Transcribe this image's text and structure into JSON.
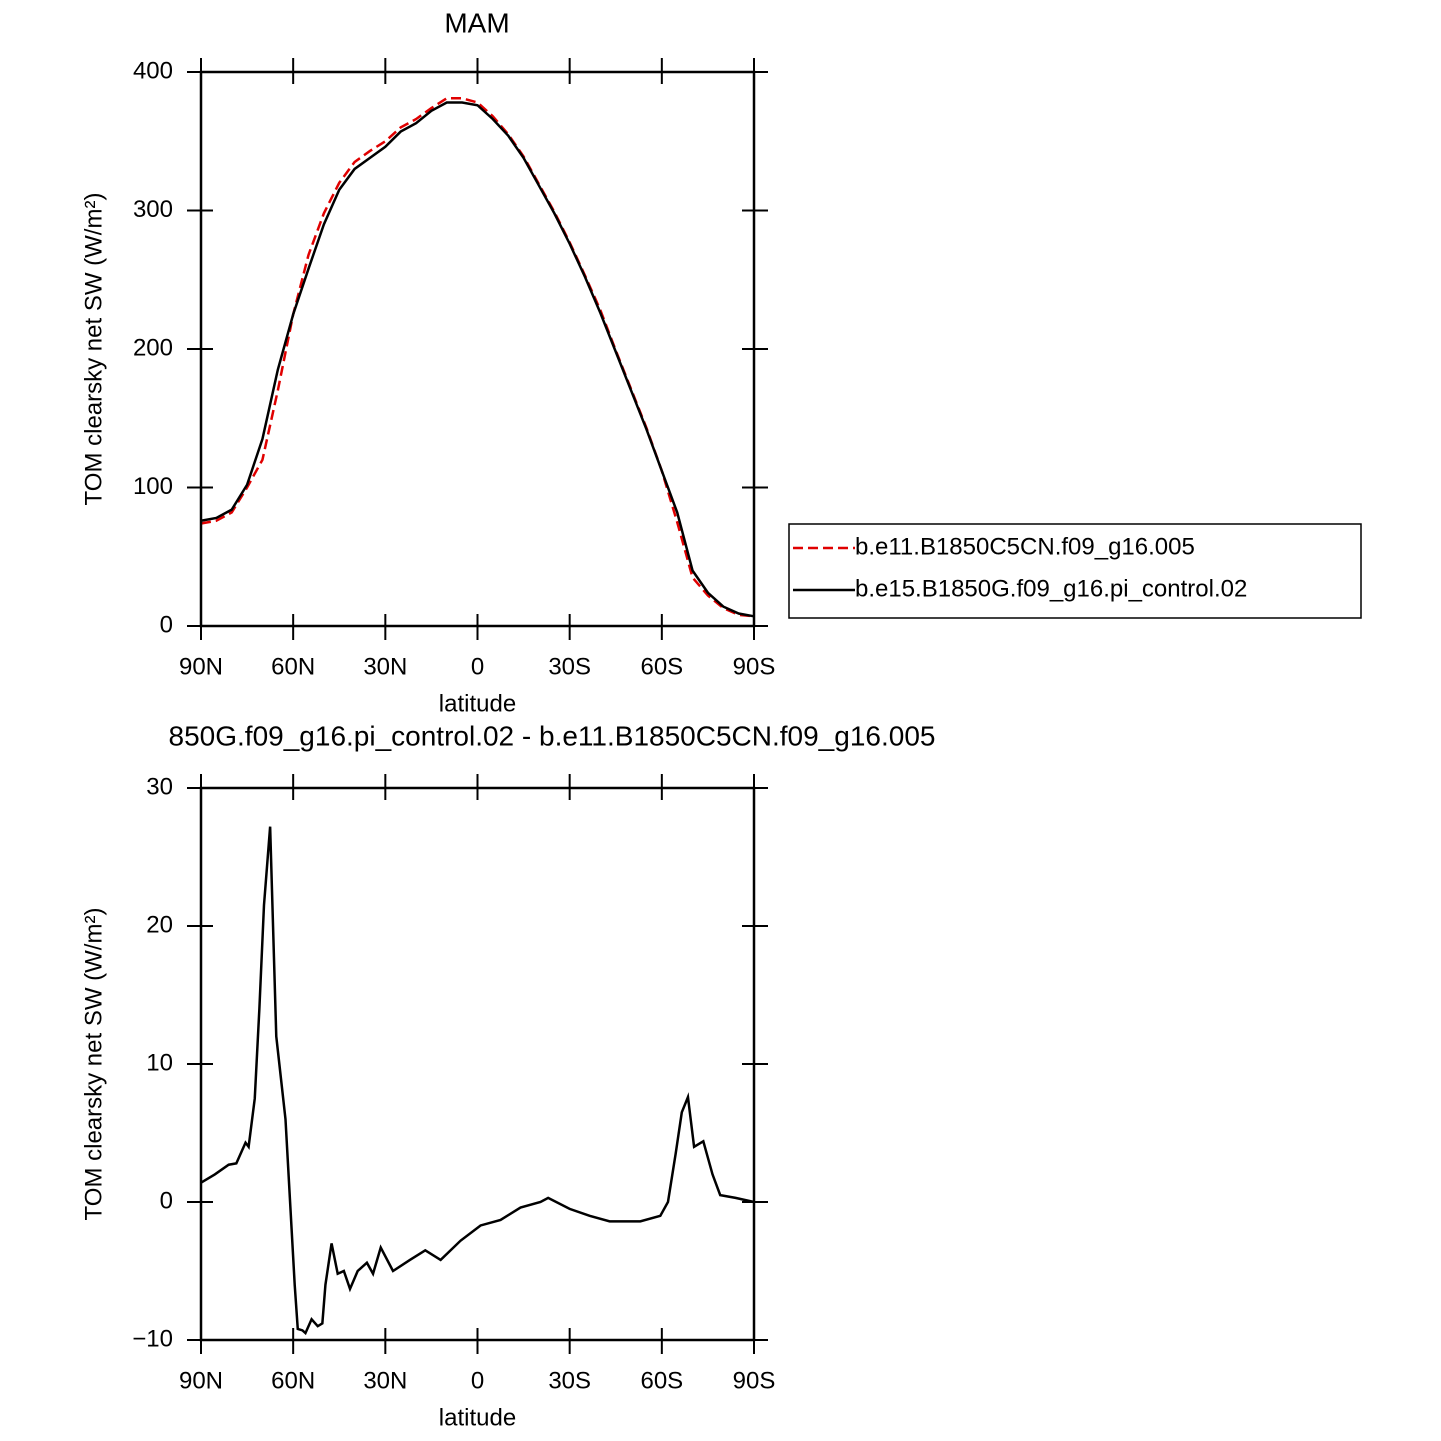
{
  "chart_data": [
    {
      "type": "line",
      "title": "MAM",
      "xlabel": "latitude",
      "ylabel": "TOM clearsky net SW (W/m²)",
      "x": [
        90,
        85,
        80,
        75,
        70,
        65,
        60,
        55,
        50,
        45,
        40,
        35,
        30,
        25,
        20,
        15,
        10,
        5,
        0,
        -5,
        -10,
        -15,
        -20,
        -25,
        -30,
        -35,
        -40,
        -45,
        -50,
        -55,
        -60,
        -65,
        -70,
        -75,
        -80,
        -85,
        -90
      ],
      "series": [
        {
          "name": "b.e11.B1850C5CN.f09_g16.005",
          "color": "#e00000",
          "line_style": "dashed",
          "values": [
            74,
            76,
            82,
            100,
            120,
            170,
            225,
            268,
            298,
            320,
            335,
            343,
            350,
            360,
            366,
            374,
            381,
            381,
            378,
            368,
            355,
            339,
            319,
            299,
            277,
            253,
            228,
            199,
            171,
            143,
            112,
            75,
            35,
            22,
            13,
            8,
            7
          ]
        },
        {
          "name": "b.e15.B1850G.f09_g16.pi_control.02",
          "color": "#000000",
          "line_style": "solid",
          "values": [
            76,
            78,
            84,
            102,
            135,
            185,
            225,
            258,
            290,
            315,
            330,
            338,
            346,
            357,
            363,
            372,
            378,
            378,
            376,
            366,
            354,
            338,
            318,
            298,
            276,
            252,
            226,
            198,
            170,
            142,
            112,
            82,
            40,
            24,
            14,
            9,
            7
          ]
        }
      ],
      "xlim": [
        90,
        -90
      ],
      "xticks": [
        {
          "value": 90,
          "label": "90N"
        },
        {
          "value": 60,
          "label": "60N"
        },
        {
          "value": 30,
          "label": "30N"
        },
        0,
        {
          "value": -30,
          "label": "30S"
        },
        {
          "value": -60,
          "label": "60S"
        },
        {
          "value": -90,
          "label": "90S"
        }
      ],
      "ylim": [
        0,
        400
      ],
      "yticks": [
        0,
        100,
        200,
        300,
        400
      ],
      "legend": "right"
    },
    {
      "type": "line",
      "title": "850G.f09_g16.pi_control.02 - b.e11.B1850C5CN.f09_g16.005",
      "xlabel": "latitude",
      "ylabel": "TOM clearsky net SW (W/m²)",
      "x": [
        90,
        85.5,
        81,
        78.5,
        75.5,
        74.5,
        72.5,
        71,
        69.5,
        67.5,
        65.5,
        64,
        62.5,
        61,
        59.5,
        58.5,
        57,
        56,
        54,
        52,
        50.5,
        49.5,
        47.5,
        45.5,
        43.5,
        41.5,
        39,
        36,
        34,
        31.5,
        27.5,
        22,
        17,
        12,
        5.5,
        -1,
        -7.5,
        -14,
        -20.5,
        -23,
        -30,
        -36.5,
        -43,
        -53,
        -59.5,
        -62,
        -64.5,
        -66.5,
        -68.5,
        -70.5,
        -73.5,
        -76.5,
        -79,
        -84,
        -90
      ],
      "series": [
        {
          "color": "#000000",
          "line_style": "solid",
          "values": [
            1.4,
            2.0,
            2.7,
            2.8,
            4.3,
            4.0,
            7.5,
            14,
            21.5,
            27.2,
            12,
            9,
            6,
            0,
            -6,
            -9.2,
            -9.3,
            -9.5,
            -8.5,
            -9,
            -8.8,
            -6,
            -3,
            -5.2,
            -5.0,
            -6.3,
            -5,
            -4.4,
            -5.2,
            -3.3,
            -5.0,
            -4.2,
            -3.5,
            -4.2,
            -2.8,
            -1.7,
            -1.3,
            -0.4,
            0.0,
            0.3,
            -0.5,
            -1.0,
            -1.4,
            -1.4,
            -1.0,
            0,
            3.5,
            6.5,
            7.6,
            4,
            4.4,
            2.0,
            0.5,
            0.3,
            0.0
          ]
        }
      ],
      "xlim": [
        90,
        -90
      ],
      "xticks": [
        {
          "value": 90,
          "label": "90N"
        },
        {
          "value": 60,
          "label": "60N"
        },
        {
          "value": 30,
          "label": "30N"
        },
        0,
        {
          "value": -30,
          "label": "30S"
        },
        {
          "value": -60,
          "label": "60S"
        },
        {
          "value": -90,
          "label": "90S"
        }
      ],
      "ylim": [
        -10,
        30
      ],
      "yticks": [
        {
          "value": -10,
          "label": "−10"
        },
        0,
        10,
        20,
        30
      ]
    }
  ]
}
